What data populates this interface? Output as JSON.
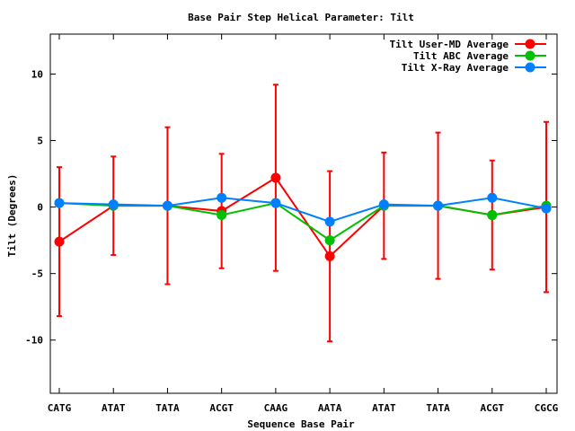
{
  "chart_data": {
    "type": "line",
    "title": "Base Pair Step Helical Parameter: Tilt",
    "xlabel": "Sequence Base Pair",
    "ylabel": "Tilt (Degrees)",
    "categories": [
      "CATG",
      "ATAT",
      "TATA",
      "ACGT",
      "CAAG",
      "AATA",
      "ATAT",
      "TATA",
      "ACGT",
      "CGCG"
    ],
    "ylim": [
      -14,
      13
    ],
    "yticks": [
      -10,
      -5,
      0,
      5,
      10
    ],
    "grid": false,
    "legend_position": "top-right",
    "series": [
      {
        "name": "Tilt User-MD Average",
        "color": "#ff0000",
        "values": [
          -2.6,
          0.1,
          0.1,
          -0.3,
          2.2,
          -3.7,
          0.1,
          0.1,
          -0.6,
          0.0
        ],
        "error": [
          5.6,
          3.7,
          5.9,
          4.3,
          7.0,
          6.4,
          4.0,
          5.5,
          4.1,
          6.4
        ]
      },
      {
        "name": "Tilt ABC Average",
        "color": "#00c000",
        "values": [
          0.3,
          0.1,
          0.1,
          -0.6,
          0.3,
          -2.5,
          0.1,
          0.1,
          -0.6,
          0.1
        ]
      },
      {
        "name": "Tilt X-Ray Average",
        "color": "#0080ff",
        "values": [
          0.3,
          0.2,
          0.1,
          0.7,
          0.3,
          -1.1,
          0.2,
          0.1,
          0.7,
          -0.1
        ]
      }
    ]
  }
}
